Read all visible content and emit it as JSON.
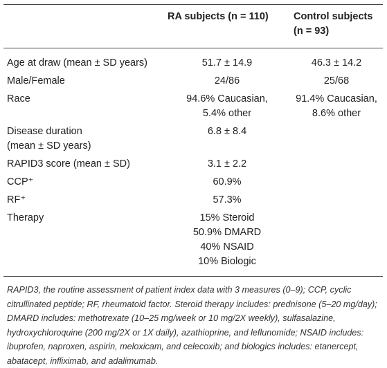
{
  "table": {
    "header": [
      "RA subjects (n = 110)",
      [
        "Control subjects",
        "(n = 93)"
      ]
    ],
    "rows": [
      [
        "Age at draw (mean ± SD years)",
        "51.7 ± 14.9",
        "46.3 ± 14.2"
      ],
      [
        "Male/Female",
        "24/86",
        "25/68"
      ],
      [
        "Race",
        [
          "94.6% Caucasian,",
          "5.4% other"
        ],
        [
          "91.4% Caucasian,",
          "8.6% other"
        ]
      ],
      [
        [
          "Disease duration",
          "(mean ± SD years)"
        ],
        "6.8 ± 8.4",
        null
      ],
      [
        "RAPID3 score (mean ± SD)",
        "3.1 ± 2.2",
        null
      ],
      [
        "CCP⁺",
        "60.9%",
        null
      ],
      [
        "RF⁺",
        "57.3%",
        null
      ],
      [
        "Therapy",
        [
          "15% Steroid",
          "50.9% DMARD",
          "40% NSAID",
          "10% Biologic"
        ],
        null
      ]
    ],
    "footnote": "RAPID3, the routine assessment of patient index data with 3 measures (0–9); CCP, cyclic citrullinated peptide; RF, rheumatoid factor. Steroid therapy includes: prednisone (5–20 mg/day); DMARD includes: methotrexate (10–25 mg/week or 10 mg/2X weekly), sulfasalazine, hydroxychloroquine (200 mg/2X or 1X daily), azathioprine, and leflunomide; NSAID includes: ibuprofen, naproxen, aspirin, meloxicam, and celecoxib; and biologics includes: etanercept, abatacept, infliximab, and adalimumab."
  }
}
